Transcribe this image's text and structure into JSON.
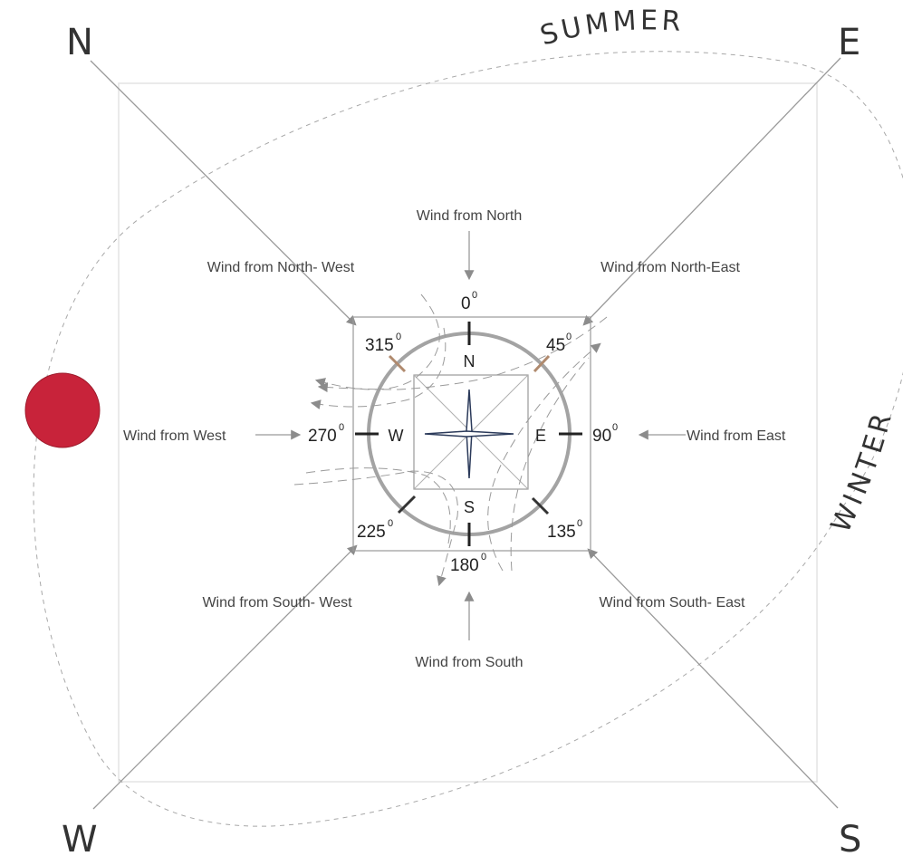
{
  "corners": {
    "north": "N",
    "east": "E",
    "south": "S",
    "west": "W"
  },
  "seasons": {
    "summer": "SUMMER",
    "winter": "WINTER"
  },
  "winds": {
    "north": "Wind from North",
    "north_east": "Wind from North-East",
    "east": "Wind from East",
    "south_east": "Wind from South- East",
    "south": "Wind from South",
    "south_west": "Wind from South- West",
    "west": "Wind from West",
    "north_west": "Wind from North- West"
  },
  "degrees": {
    "d0": "0",
    "d45": "45",
    "d90": "90",
    "d135": "135",
    "d180": "180",
    "d225": "225",
    "d270": "270",
    "d315": "315",
    "symbol": "0"
  },
  "compass_letters": {
    "n": "N",
    "e": "E",
    "s": "S",
    "w": "W"
  },
  "colors": {
    "sun": "#c8233a",
    "line": "#9a9a9a",
    "dash": "#9a9a9a",
    "ring": "#a3a3a3",
    "needle": "#2b3a5a"
  }
}
